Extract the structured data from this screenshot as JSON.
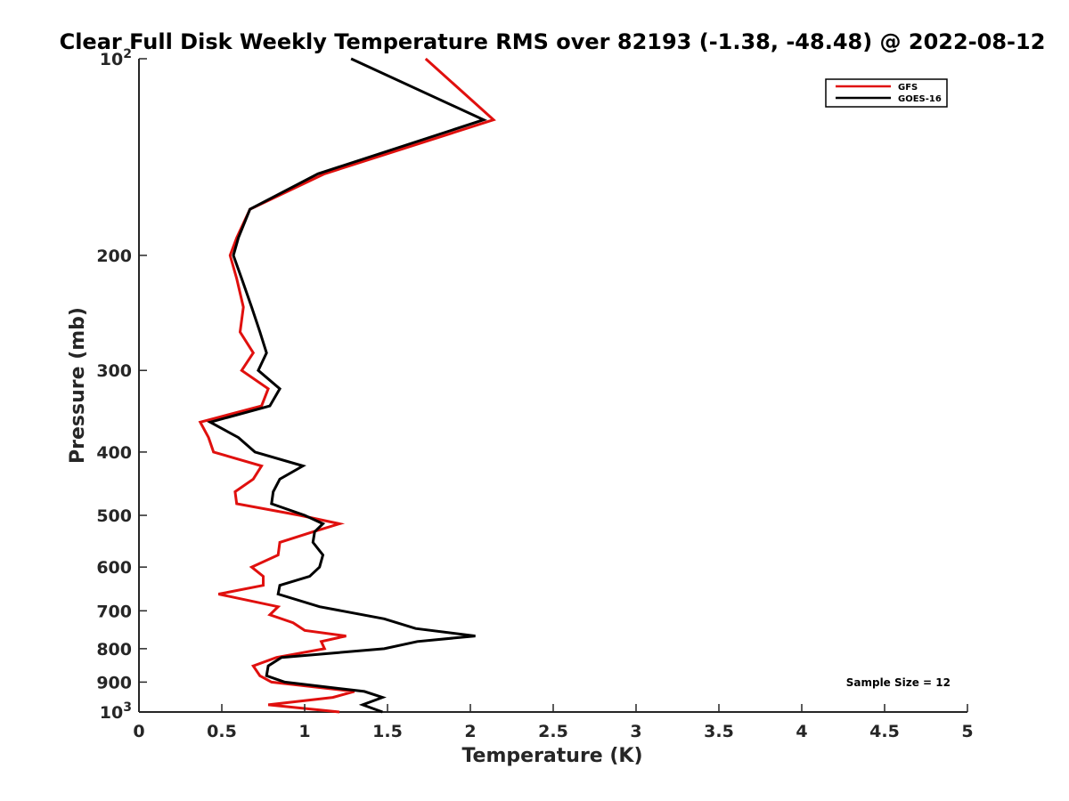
{
  "chart_data": {
    "type": "line",
    "title": "Clear Full Disk Weekly Temperature RMS over 82193 (-1.38, -48.48) @ 2022-08-12",
    "xlabel": "Temperature (K)",
    "ylabel": "Pressure (mb)",
    "xlim": [
      0,
      5
    ],
    "ylim": [
      1000,
      100
    ],
    "yscale": "log",
    "x_ticks": [
      "0",
      "0.5",
      "1",
      "1.5",
      "2",
      "2.5",
      "3",
      "3.5",
      "4",
      "4.5",
      "5"
    ],
    "x_tick_values": [
      0,
      0.5,
      1,
      1.5,
      2,
      2.5,
      3,
      3.5,
      4,
      4.5,
      5
    ],
    "y_ticks": [
      {
        "value": 100,
        "base": "10",
        "exp": "2"
      },
      {
        "value": 200,
        "label": "200"
      },
      {
        "value": 300,
        "label": "300"
      },
      {
        "value": 400,
        "label": "400"
      },
      {
        "value": 500,
        "label": "500"
      },
      {
        "value": 600,
        "label": "600"
      },
      {
        "value": 700,
        "label": "700"
      },
      {
        "value": 800,
        "label": "800"
      },
      {
        "value": 900,
        "label": "900"
      },
      {
        "value": 1000,
        "base": "10",
        "exp": "3"
      }
    ],
    "legend_position": "top-right",
    "grid": false,
    "annotation": "Sample Size = 12",
    "series": [
      {
        "name": "GFS",
        "color": "#e0100e",
        "points": [
          [
            1.73,
            100
          ],
          [
            2.14,
            124
          ],
          [
            1.12,
            150
          ],
          [
            0.67,
            170
          ],
          [
            0.59,
            188
          ],
          [
            0.55,
            200
          ],
          [
            0.59,
            217
          ],
          [
            0.63,
            240
          ],
          [
            0.61,
            262
          ],
          [
            0.69,
            282
          ],
          [
            0.62,
            300
          ],
          [
            0.78,
            320
          ],
          [
            0.74,
            340
          ],
          [
            0.37,
            360
          ],
          [
            0.42,
            380
          ],
          [
            0.45,
            400
          ],
          [
            0.74,
            420
          ],
          [
            0.69,
            440
          ],
          [
            0.58,
            460
          ],
          [
            0.59,
            480
          ],
          [
            0.97,
            500
          ],
          [
            1.21,
            515
          ],
          [
            1.05,
            530
          ],
          [
            0.85,
            550
          ],
          [
            0.84,
            575
          ],
          [
            0.68,
            600
          ],
          [
            0.75,
            620
          ],
          [
            0.75,
            640
          ],
          [
            0.48,
            660
          ],
          [
            0.84,
            690
          ],
          [
            0.79,
            710
          ],
          [
            0.93,
            730
          ],
          [
            1.0,
            750
          ],
          [
            1.25,
            765
          ],
          [
            1.1,
            780
          ],
          [
            1.12,
            800
          ],
          [
            0.83,
            825
          ],
          [
            0.69,
            850
          ],
          [
            0.73,
            880
          ],
          [
            0.8,
            900
          ],
          [
            1.3,
            930
          ],
          [
            1.17,
            950
          ],
          [
            0.78,
            975
          ],
          [
            1.21,
            1000
          ]
        ]
      },
      {
        "name": "GOES-16",
        "color": "#000000",
        "points": [
          [
            1.28,
            100
          ],
          [
            2.08,
            124
          ],
          [
            1.08,
            150
          ],
          [
            0.67,
            170
          ],
          [
            0.6,
            188
          ],
          [
            0.57,
            200
          ],
          [
            0.62,
            217
          ],
          [
            0.68,
            240
          ],
          [
            0.73,
            262
          ],
          [
            0.77,
            282
          ],
          [
            0.72,
            300
          ],
          [
            0.85,
            320
          ],
          [
            0.79,
            340
          ],
          [
            0.43,
            360
          ],
          [
            0.6,
            380
          ],
          [
            0.7,
            400
          ],
          [
            0.99,
            420
          ],
          [
            0.85,
            440
          ],
          [
            0.81,
            460
          ],
          [
            0.8,
            480
          ],
          [
            1.0,
            500
          ],
          [
            1.11,
            515
          ],
          [
            1.06,
            530
          ],
          [
            1.05,
            550
          ],
          [
            1.11,
            575
          ],
          [
            1.09,
            600
          ],
          [
            1.03,
            620
          ],
          [
            0.85,
            640
          ],
          [
            0.84,
            660
          ],
          [
            1.09,
            690
          ],
          [
            1.48,
            720
          ],
          [
            1.67,
            745
          ],
          [
            2.03,
            765
          ],
          [
            1.68,
            780
          ],
          [
            1.48,
            800
          ],
          [
            0.86,
            825
          ],
          [
            0.78,
            850
          ],
          [
            0.77,
            880
          ],
          [
            0.88,
            900
          ],
          [
            1.36,
            930
          ],
          [
            1.47,
            950
          ],
          [
            1.35,
            975
          ],
          [
            1.47,
            1000
          ]
        ]
      }
    ]
  }
}
